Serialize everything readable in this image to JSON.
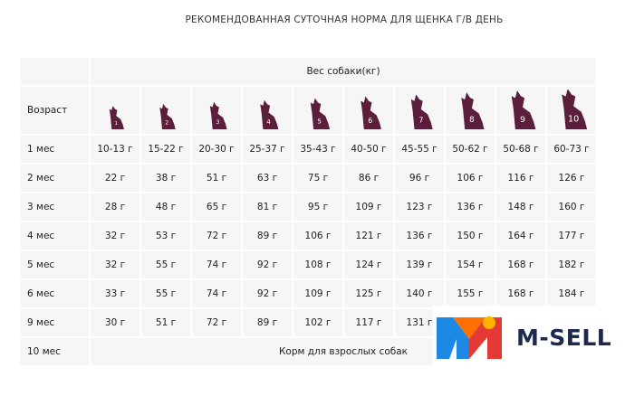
{
  "title": "РЕКОМЕНДОВАННАЯ СУТОЧНАЯ НОРМА ДЛЯ ЩЕНКА Г/В ДЕНЬ",
  "table": {
    "weight_header": "Вес собаки(кг)",
    "age_header": "Возраст",
    "sizes": [
      "1",
      "2",
      "3",
      "4",
      "5",
      "6",
      "7",
      "8",
      "9",
      "10"
    ],
    "rows": [
      {
        "age": "1 мес",
        "cells": [
          "10-13 г",
          "15-22 г",
          "20-30 г",
          "25-37 г",
          "35-43 г",
          "40-50 г",
          "45-55 г",
          "50-62 г",
          "50-68 г",
          "60-73 г"
        ]
      },
      {
        "age": "2 мес",
        "cells": [
          "22 г",
          "38 г",
          "51 г",
          "63 г",
          "75 г",
          "86 г",
          "96 г",
          "106 г",
          "116 г",
          "126 г"
        ]
      },
      {
        "age": "3 мес",
        "cells": [
          "28 г",
          "48 г",
          "65 г",
          "81 г",
          "95 г",
          "109 г",
          "123 г",
          "136 г",
          "148 г",
          "160 г"
        ]
      },
      {
        "age": "4 мес",
        "cells": [
          "32 г",
          "53 г",
          "72 г",
          "89 г",
          "106 г",
          "121 г",
          "136 г",
          "150 г",
          "164 г",
          "177 г"
        ]
      },
      {
        "age": "5 мес",
        "cells": [
          "32 г",
          "55 г",
          "74 г",
          "92 г",
          "108 г",
          "124 г",
          "139 г",
          "154 г",
          "168 г",
          "182 г"
        ]
      },
      {
        "age": "6 мес",
        "cells": [
          "33 г",
          "55 г",
          "74 г",
          "92 г",
          "109 г",
          "125 г",
          "140 г",
          "155 г",
          "168 г",
          "184 г"
        ]
      },
      {
        "age": "9 мес",
        "cells": [
          "30 г",
          "51 г",
          "72 г",
          "89 г",
          "102 г",
          "117 г",
          "131 г"
        ]
      },
      {
        "age": "10 мес",
        "note": "Корм для взрослых собак"
      }
    ]
  },
  "logo": {
    "text": "M-SELL"
  }
}
